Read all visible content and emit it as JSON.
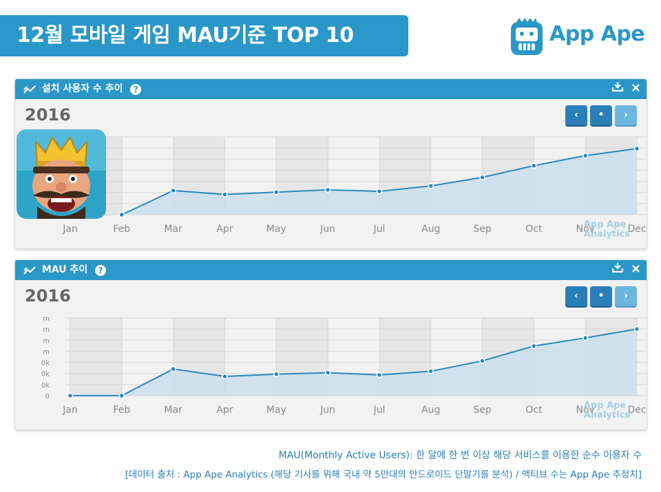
{
  "header": {
    "title": "12월 모바일 게임 MAU기준 TOP 10"
  },
  "logo": {
    "text": "App Ape"
  },
  "colors": {
    "accent": "#2a97c8",
    "area": "#c9dfec",
    "line": "#2a87c0"
  },
  "panels": [
    {
      "title": "설치 사용자 수 추이",
      "help": "?",
      "year": "2016",
      "nav": [
        "‹",
        "•",
        "›"
      ],
      "watermark": [
        "App Ape",
        "Analytics"
      ],
      "icons": [
        "download-icon",
        "close-icon",
        "trend-icon",
        "help-icon"
      ]
    },
    {
      "title": "MAU 추이",
      "help": "?",
      "year": "2016",
      "nav": [
        "‹",
        "•",
        "›"
      ],
      "watermark": [
        "App Ape",
        "Analytics"
      ],
      "icons": [
        "download-icon",
        "close-icon",
        "trend-icon",
        "help-icon"
      ]
    }
  ],
  "chart_data": [
    {
      "type": "area",
      "title": "설치 사용자 수 추이",
      "categories": [
        "Jan",
        "Feb",
        "Mar",
        "Apr",
        "May",
        "Jun",
        "Jul",
        "Aug",
        "Sep",
        "Oct",
        "Nov",
        "Dec"
      ],
      "values": [
        null,
        0,
        31,
        26,
        29,
        32,
        30,
        37,
        48,
        63,
        76,
        85
      ],
      "ylim": [
        0,
        100
      ],
      "grid": true,
      "yticks": []
    },
    {
      "type": "area",
      "title": "MAU 추이",
      "categories": [
        "Jan",
        "Feb",
        "Mar",
        "Apr",
        "May",
        "Jun",
        "Jul",
        "Aug",
        "Sep",
        "Oct",
        "Nov",
        "Dec"
      ],
      "values": [
        0,
        0,
        36,
        26,
        29,
        31,
        28,
        33,
        47,
        67,
        78,
        90
      ],
      "ylim": [
        0,
        105
      ],
      "grid": true,
      "yticks": [
        "0",
        "0k",
        "0k",
        "0k",
        "m",
        "m",
        "m",
        "m"
      ]
    }
  ],
  "footnotes": {
    "line1": "MAU(Monthly Active Users): 한 달에 한 번 이상 해당 서비스를 이용한 순수 이용자 수",
    "line2": "[데이터 출처 : App Ape Analytics (해당 기사를 위해 국내 약 5만대의 안드로이드 단말기를 분석) / 액티브 수는 App Ape 추정치]"
  }
}
